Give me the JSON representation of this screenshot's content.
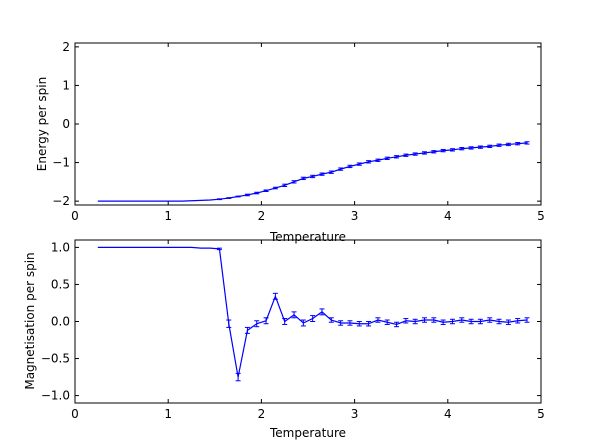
{
  "chart_data": [
    {
      "type": "line",
      "title": "",
      "xlabel": "Temperature",
      "ylabel": "Energy per spin",
      "xlim": [
        0,
        5
      ],
      "ylim": [
        -2.1,
        2.1
      ],
      "xticks": [
        0,
        1,
        2,
        3,
        4,
        5
      ],
      "xtick_labels": [
        "0",
        "1",
        "2",
        "3",
        "4",
        "5"
      ],
      "yticks": [
        -2,
        -1,
        0,
        1,
        2
      ],
      "ytick_labels": [
        "−2",
        "−1",
        "0",
        "1",
        "2"
      ],
      "grid": false,
      "color": "#0000ff",
      "error_bars": true,
      "x": [
        0.25,
        0.35,
        0.45,
        0.55,
        0.65,
        0.75,
        0.85,
        0.95,
        1.05,
        1.15,
        1.25,
        1.35,
        1.45,
        1.55,
        1.65,
        1.75,
        1.85,
        1.95,
        2.05,
        2.15,
        2.25,
        2.35,
        2.45,
        2.55,
        2.65,
        2.75,
        2.85,
        2.95,
        3.05,
        3.15,
        3.25,
        3.35,
        3.45,
        3.55,
        3.65,
        3.75,
        3.85,
        3.95,
        4.05,
        4.15,
        4.25,
        4.35,
        4.45,
        4.55,
        4.65,
        4.75,
        4.85
      ],
      "y": [
        -2.0,
        -2.0,
        -2.0,
        -2.0,
        -2.0,
        -2.0,
        -2.0,
        -2.0,
        -2.0,
        -2.0,
        -1.99,
        -1.98,
        -1.97,
        -1.95,
        -1.92,
        -1.88,
        -1.84,
        -1.79,
        -1.73,
        -1.66,
        -1.59,
        -1.5,
        -1.41,
        -1.36,
        -1.3,
        -1.25,
        -1.17,
        -1.1,
        -1.04,
        -0.98,
        -0.94,
        -0.89,
        -0.85,
        -0.81,
        -0.78,
        -0.75,
        -0.72,
        -0.69,
        -0.67,
        -0.64,
        -0.62,
        -0.6,
        -0.58,
        -0.55,
        -0.53,
        -0.51,
        -0.49
      ],
      "yerr": [
        0,
        0,
        0,
        0,
        0,
        0,
        0,
        0,
        0,
        0,
        0,
        0,
        0,
        0.01,
        0.01,
        0.01,
        0.02,
        0.02,
        0.02,
        0.02,
        0.03,
        0.03,
        0.03,
        0.03,
        0.03,
        0.03,
        0.03,
        0.03,
        0.03,
        0.03,
        0.03,
        0.03,
        0.03,
        0.03,
        0.03,
        0.03,
        0.03,
        0.03,
        0.03,
        0.03,
        0.03,
        0.03,
        0.03,
        0.03,
        0.03,
        0.03,
        0.03
      ]
    },
    {
      "type": "line",
      "title": "",
      "xlabel": "Temperature",
      "ylabel": "Magnetisation per spin",
      "xlim": [
        0,
        5
      ],
      "ylim": [
        -1.1,
        1.1
      ],
      "xticks": [
        0,
        1,
        2,
        3,
        4,
        5
      ],
      "xtick_labels": [
        "0",
        "1",
        "2",
        "3",
        "4",
        "5"
      ],
      "yticks": [
        -1.0,
        -0.5,
        0.0,
        0.5,
        1.0
      ],
      "ytick_labels": [
        "−1.0",
        "−0.5",
        "0.0",
        "0.5",
        "1.0"
      ],
      "grid": false,
      "color": "#0000ff",
      "error_bars": true,
      "x": [
        0.25,
        0.35,
        0.45,
        0.55,
        0.65,
        0.75,
        0.85,
        0.95,
        1.05,
        1.15,
        1.25,
        1.35,
        1.45,
        1.55,
        1.65,
        1.75,
        1.85,
        1.95,
        2.05,
        2.15,
        2.25,
        2.35,
        2.45,
        2.55,
        2.65,
        2.75,
        2.85,
        2.95,
        3.05,
        3.15,
        3.25,
        3.35,
        3.45,
        3.55,
        3.65,
        3.75,
        3.85,
        3.95,
        4.05,
        4.15,
        4.25,
        4.35,
        4.45,
        4.55,
        4.65,
        4.75,
        4.85
      ],
      "y": [
        1.0,
        1.0,
        1.0,
        1.0,
        1.0,
        1.0,
        1.0,
        1.0,
        1.0,
        1.0,
        1.0,
        0.99,
        0.99,
        0.98,
        -0.03,
        -0.75,
        -0.12,
        -0.03,
        0.01,
        0.34,
        0.0,
        0.09,
        -0.02,
        0.04,
        0.13,
        0.02,
        -0.02,
        -0.02,
        -0.03,
        -0.03,
        0.02,
        -0.01,
        -0.04,
        0.01,
        0.0,
        0.02,
        0.02,
        -0.01,
        0.0,
        0.02,
        0.0,
        0.0,
        0.02,
        0.0,
        -0.01,
        0.01,
        0.02
      ],
      "yerr": [
        0,
        0,
        0,
        0,
        0,
        0,
        0,
        0,
        0,
        0,
        0,
        0,
        0,
        0.01,
        0.05,
        0.05,
        0.04,
        0.04,
        0.04,
        0.04,
        0.04,
        0.04,
        0.04,
        0.04,
        0.04,
        0.03,
        0.03,
        0.03,
        0.03,
        0.03,
        0.03,
        0.03,
        0.03,
        0.03,
        0.03,
        0.03,
        0.03,
        0.03,
        0.03,
        0.03,
        0.03,
        0.03,
        0.03,
        0.03,
        0.03,
        0.03,
        0.03
      ]
    }
  ]
}
